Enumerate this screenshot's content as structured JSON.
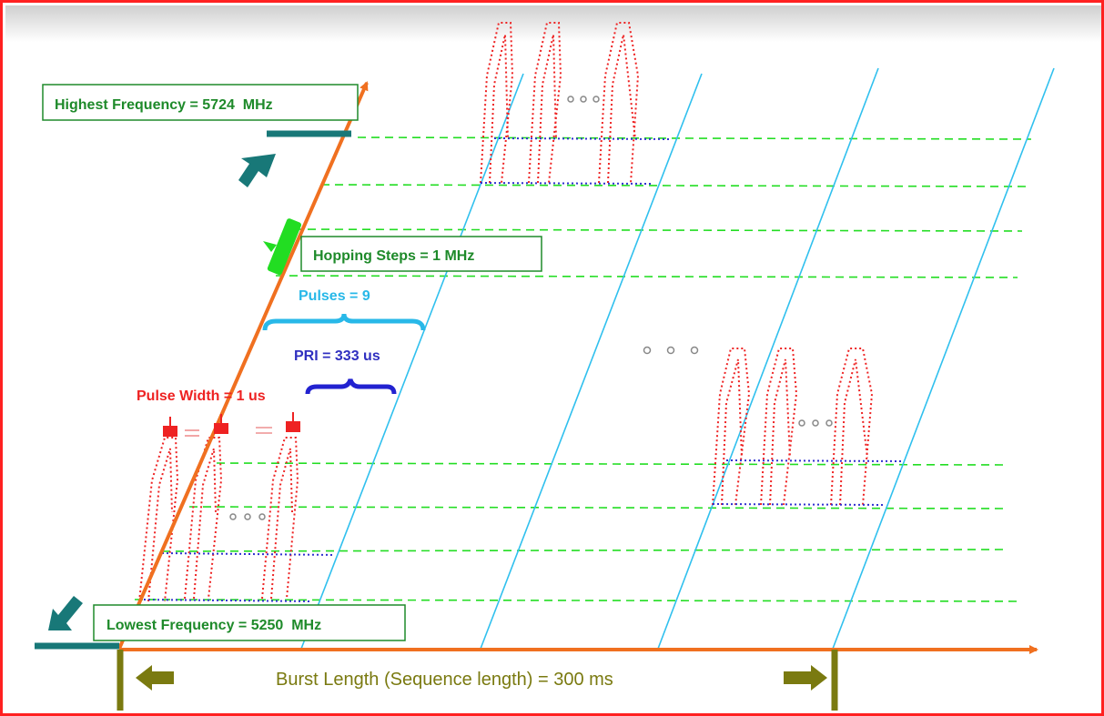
{
  "labels": {
    "highest_frequency": "Highest Frequency = 5724  MHz",
    "lowest_frequency": "Lowest Frequency = 5250  MHz",
    "hopping_steps": "Hopping Steps = 1 MHz",
    "pulses": "Pulses = 9",
    "pri": "PRI = 333 us",
    "pulse_width": "Pulse Width = 1 us",
    "burst_length": "Burst Length (Sequence length) = 300 ms"
  },
  "colors": {
    "frame": "#ff2020",
    "axis": "#f07020",
    "highest_label": "#1e8a2a",
    "hopping_label": "#1e8a2a",
    "pulses": "#28b8e8",
    "pri": "#3030c0",
    "pulse_width": "#ee2222",
    "burst": "#7a7a10",
    "teal_marker": "#187878",
    "frequency_line": "#22dd22",
    "sequence_line": "#30c0ee",
    "pulse_envelope": "#ee2222",
    "pri_line": "#3030d0",
    "hop_marker": "#22dd22"
  }
}
